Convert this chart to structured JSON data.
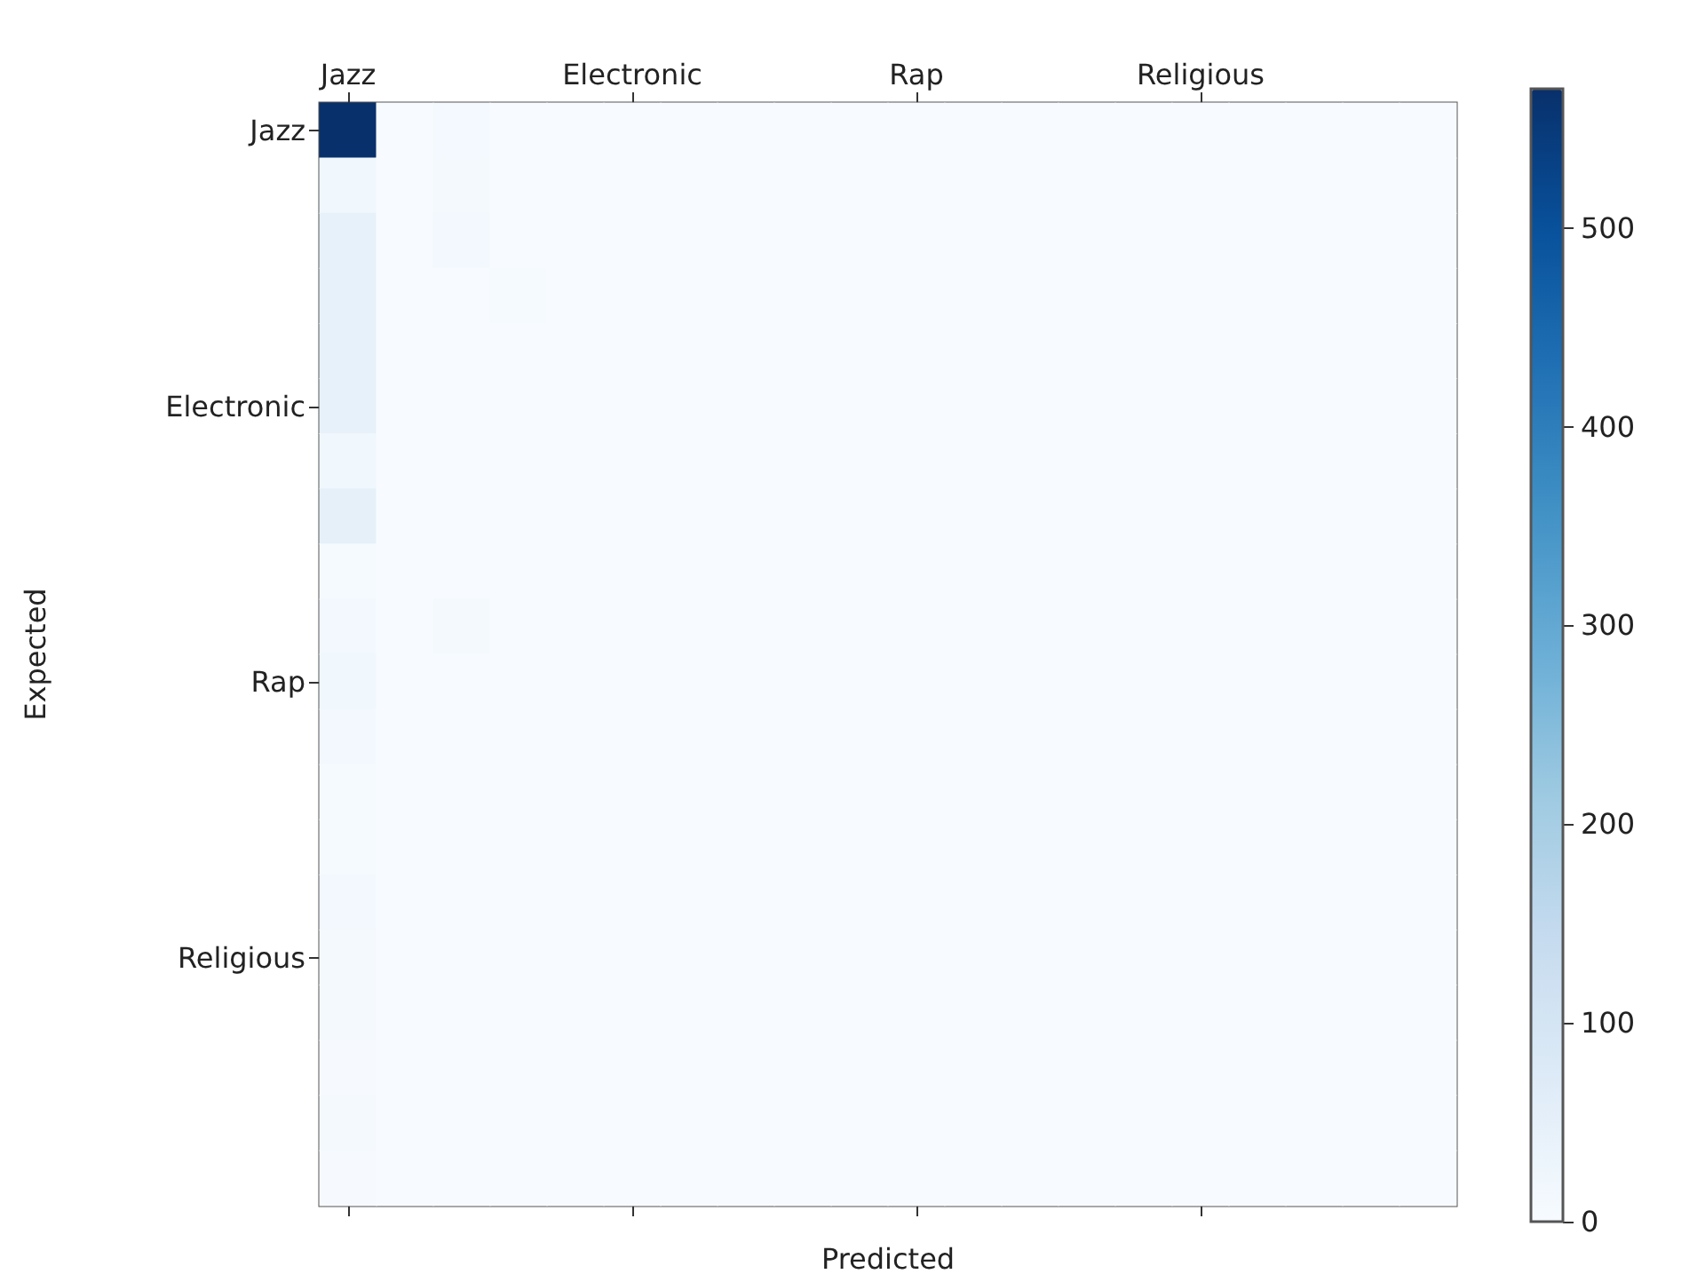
{
  "chart_data": {
    "type": "heatmap",
    "xlabel": "Predicted",
    "ylabel": "Expected",
    "categories": [
      "Jazz",
      null,
      null,
      null,
      null,
      "Electronic",
      null,
      null,
      null,
      null,
      "Rap",
      null,
      null,
      null,
      null,
      "Religious",
      null,
      null,
      null,
      null
    ],
    "y_categories": [
      "Jazz",
      null,
      null,
      null,
      null,
      "Electronic",
      null,
      null,
      null,
      null,
      "Rap",
      null,
      null,
      null,
      null,
      "Religious",
      null,
      null,
      null,
      null
    ],
    "cells": [
      [
        570,
        0,
        10,
        0,
        0,
        0,
        0,
        0,
        0,
        0,
        0,
        0,
        0,
        0,
        0,
        0,
        0,
        0,
        0,
        0
      ],
      [
        20,
        0,
        8,
        0,
        0,
        0,
        0,
        0,
        0,
        0,
        0,
        0,
        0,
        0,
        0,
        0,
        0,
        0,
        0,
        0
      ],
      [
        45,
        0,
        15,
        0,
        0,
        0,
        0,
        0,
        0,
        0,
        0,
        0,
        0,
        0,
        0,
        0,
        0,
        0,
        0,
        0
      ],
      [
        45,
        0,
        0,
        5,
        0,
        0,
        0,
        0,
        0,
        0,
        0,
        0,
        0,
        0,
        0,
        0,
        0,
        0,
        0,
        0
      ],
      [
        45,
        0,
        0,
        0,
        0,
        0,
        0,
        0,
        0,
        0,
        0,
        0,
        0,
        0,
        0,
        0,
        0,
        0,
        0,
        0
      ],
      [
        45,
        0,
        0,
        0,
        0,
        0,
        0,
        0,
        0,
        0,
        0,
        0,
        0,
        0,
        0,
        0,
        0,
        0,
        0,
        0
      ],
      [
        20,
        0,
        0,
        0,
        0,
        0,
        0,
        0,
        0,
        0,
        0,
        0,
        0,
        0,
        0,
        0,
        0,
        0,
        0,
        0
      ],
      [
        50,
        0,
        0,
        0,
        0,
        0,
        0,
        0,
        0,
        0,
        0,
        0,
        0,
        0,
        0,
        0,
        0,
        0,
        0,
        0
      ],
      [
        5,
        0,
        0,
        0,
        0,
        0,
        0,
        0,
        0,
        0,
        0,
        0,
        0,
        0,
        0,
        0,
        0,
        0,
        0,
        0
      ],
      [
        15,
        0,
        8,
        0,
        0,
        0,
        0,
        0,
        0,
        0,
        0,
        0,
        0,
        0,
        0,
        0,
        0,
        0,
        0,
        0
      ],
      [
        20,
        0,
        0,
        0,
        0,
        0,
        0,
        0,
        0,
        0,
        0,
        0,
        0,
        0,
        0,
        0,
        0,
        0,
        0,
        0
      ],
      [
        15,
        0,
        0,
        0,
        0,
        0,
        0,
        0,
        0,
        0,
        0,
        0,
        0,
        0,
        0,
        0,
        0,
        0,
        0,
        0
      ],
      [
        5,
        0,
        0,
        0,
        0,
        0,
        0,
        0,
        0,
        0,
        0,
        0,
        0,
        0,
        0,
        0,
        0,
        0,
        0,
        0
      ],
      [
        5,
        0,
        0,
        0,
        0,
        0,
        0,
        0,
        0,
        0,
        0,
        0,
        0,
        0,
        0,
        0,
        0,
        0,
        0,
        0
      ],
      [
        15,
        0,
        0,
        0,
        0,
        0,
        0,
        0,
        0,
        0,
        0,
        0,
        0,
        0,
        0,
        0,
        0,
        0,
        0,
        0
      ],
      [
        8,
        0,
        0,
        0,
        0,
        0,
        0,
        0,
        0,
        0,
        0,
        0,
        0,
        0,
        0,
        0,
        0,
        0,
        0,
        0
      ],
      [
        8,
        0,
        0,
        0,
        0,
        0,
        0,
        0,
        0,
        0,
        0,
        0,
        0,
        0,
        0,
        0,
        0,
        0,
        0,
        0
      ],
      [
        3,
        0,
        0,
        0,
        0,
        0,
        0,
        0,
        0,
        0,
        0,
        0,
        0,
        0,
        0,
        0,
        0,
        0,
        0,
        0
      ],
      [
        8,
        0,
        0,
        0,
        0,
        0,
        0,
        0,
        0,
        0,
        0,
        0,
        0,
        0,
        0,
        0,
        0,
        0,
        0,
        0
      ],
      [
        3,
        0,
        0,
        0,
        0,
        0,
        0,
        0,
        0,
        0,
        0,
        0,
        0,
        0,
        0,
        0,
        0,
        0,
        0,
        0
      ]
    ],
    "clim": [
      0,
      570
    ],
    "cticks": [
      0,
      100,
      200,
      300,
      400,
      500
    ]
  }
}
